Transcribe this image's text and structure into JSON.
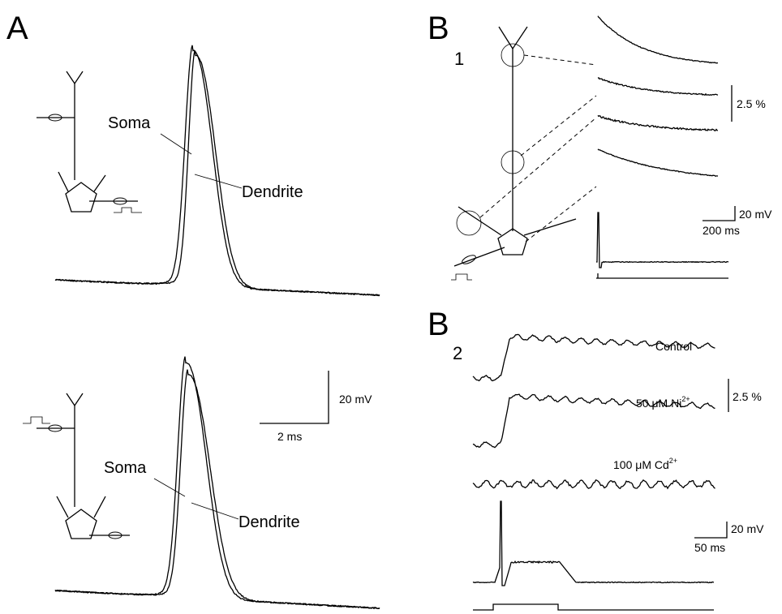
{
  "panels": {
    "a": {
      "label": "A",
      "top": {
        "soma": "Soma",
        "dendrite": "Dendrite"
      },
      "bottom": {
        "soma": "Soma",
        "dendrite": "Dendrite"
      },
      "scale_bar": {
        "voltage": "20 mV",
        "time": "2 ms"
      }
    },
    "b1": {
      "label": "B",
      "subscript": "1",
      "scale_bar": {
        "fluorescence": "2.5 %",
        "voltage": "20 mV",
        "time": "200 ms"
      }
    },
    "b2": {
      "label": "B",
      "subscript": "2",
      "conditions": [
        {
          "text": "Control"
        },
        {
          "text": "50 μM Ni",
          "superscript": "2+"
        },
        {
          "text": "100 μM Cd",
          "superscript": "2+"
        }
      ],
      "scale_bar": {
        "fluorescence": "2.5 %",
        "voltage": "20 mV",
        "time": "50 ms"
      }
    }
  }
}
